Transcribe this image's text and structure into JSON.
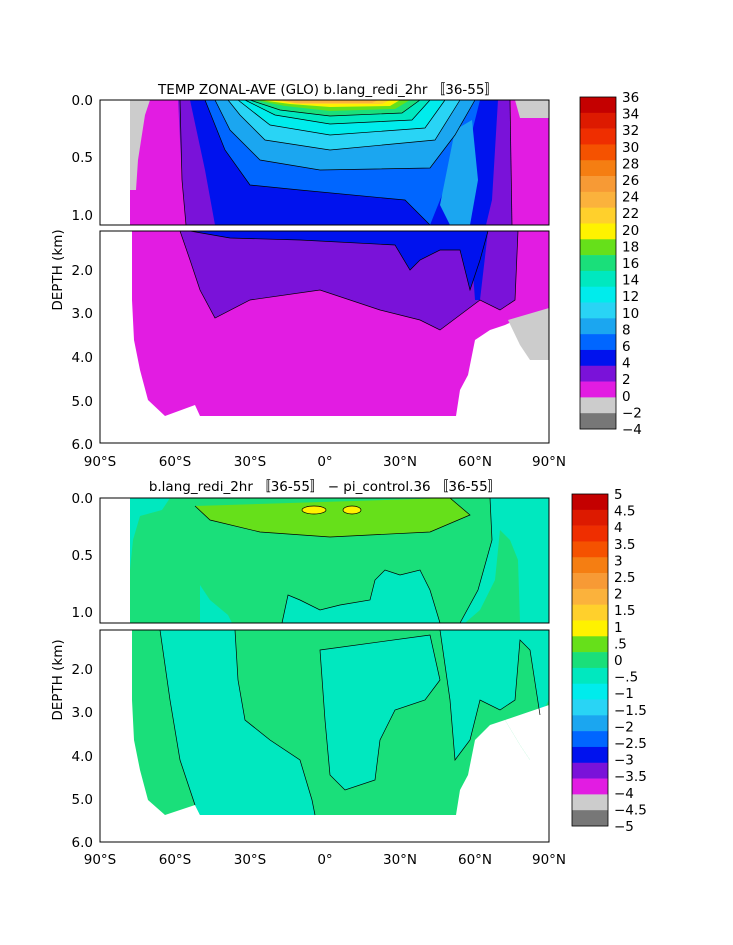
{
  "panels": [
    {
      "title": "TEMP ZONAL-AVE (GLO) b.lang_redi_2hr 〚36-55〛",
      "ylabel": "DEPTH (km)",
      "yticks_upper": [
        "0.0",
        "0.5",
        "1.0"
      ],
      "yticks_lower": [
        "2.0",
        "3.0",
        "4.0",
        "5.0",
        "6.0"
      ],
      "xticks": [
        "90°S",
        "60°S",
        "30°S",
        "0°",
        "30°N",
        "60°N",
        "90°N"
      ],
      "colorbar": {
        "labels": [
          "36",
          "34",
          "32",
          "30",
          "28",
          "26",
          "24",
          "22",
          "20",
          "18",
          "16",
          "14",
          "12",
          "10",
          "8",
          "6",
          "4",
          "2",
          "0",
          "−2",
          "−4"
        ],
        "colors": [
          "#c40000",
          "#dd1a00",
          "#ef2e00",
          "#f55200",
          "#f57e12",
          "#f79a35",
          "#fbb23c",
          "#ffd02c",
          "#fff200",
          "#66e01a",
          "#1adf7a",
          "#00e8bf",
          "#00ecec",
          "#29d4f5",
          "#1ba6f0",
          "#0066ff",
          "#0012ee",
          "#7a12d9",
          "#e21ce2",
          "#cccccc",
          "#777777"
        ]
      }
    },
    {
      "title": "b.lang_redi_2hr 〚36-55〛 − pi_control.36 〚36-55〛",
      "ylabel": "DEPTH (km)",
      "yticks_upper": [
        "0.0",
        "0.5",
        "1.0"
      ],
      "yticks_lower": [
        "2.0",
        "3.0",
        "4.0",
        "5.0",
        "6.0"
      ],
      "xticks": [
        "90°S",
        "60°S",
        "30°S",
        "0°",
        "30°N",
        "60°N",
        "90°N"
      ],
      "colorbar": {
        "labels": [
          "5",
          "4.5",
          "4",
          "3.5",
          "3",
          "2.5",
          "2",
          "1.5",
          "1",
          ".5",
          "0",
          "−.5",
          "−1",
          "−1.5",
          "−2",
          "−2.5",
          "−3",
          "−3.5",
          "−4",
          "−4.5",
          "−5"
        ],
        "colors": [
          "#c40000",
          "#dd1a00",
          "#ef2e00",
          "#f55200",
          "#f57e12",
          "#f79a35",
          "#fbb23c",
          "#ffd02c",
          "#fff200",
          "#66e01a",
          "#1adf7a",
          "#00e8bf",
          "#00ecec",
          "#29d4f5",
          "#1ba6f0",
          "#0066ff",
          "#0012ee",
          "#7a12d9",
          "#e21ce2",
          "#cccccc",
          "#777777"
        ]
      }
    }
  ],
  "chart_data": [
    {
      "type": "heatmap",
      "title": "TEMP ZONAL-AVE (GLO) b.lang_redi_2hr 〚36-55〛",
      "ylabel": "DEPTH (km)",
      "xlim": [
        -90,
        90
      ],
      "ylim": [
        6.0,
        0.0
      ],
      "legend": "right",
      "contour_levels": [
        -4,
        -2,
        0,
        2,
        4,
        6,
        8,
        10,
        12,
        14,
        16,
        18,
        20,
        22,
        24,
        26,
        28,
        30,
        32,
        34,
        36
      ]
    },
    {
      "type": "heatmap",
      "title": "b.lang_redi_2hr 〚36-55〛 − pi_control.36 〚36-55〛",
      "ylabel": "DEPTH (km)",
      "xlim": [
        -90,
        90
      ],
      "ylim": [
        6.0,
        0.0
      ],
      "legend": "right",
      "contour_levels": [
        -5,
        -4.5,
        -4,
        -3.5,
        -3,
        -2.5,
        -2,
        -1.5,
        -1,
        -0.5,
        0,
        0.5,
        1,
        1.5,
        2,
        2.5,
        3,
        3.5,
        4,
        4.5,
        5
      ]
    }
  ]
}
